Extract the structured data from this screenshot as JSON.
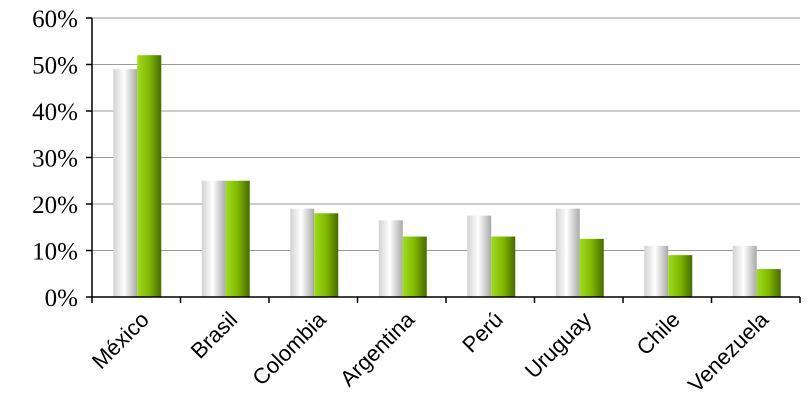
{
  "chart_data": {
    "type": "bar",
    "title": "",
    "xlabel": "",
    "ylabel": "",
    "categories": [
      "México",
      "Brasil",
      "Colombia",
      "Argentina",
      "Perú",
      "Uruguay",
      "Chile",
      "Venezuela"
    ],
    "series": [
      {
        "values": [
          49,
          25,
          19,
          16.5,
          17.5,
          19,
          11,
          11
        ],
        "color": "#d9d9d9"
      },
      {
        "values": [
          52,
          25,
          18,
          13,
          13,
          12.5,
          9,
          6
        ],
        "color": "#7fb800"
      }
    ],
    "ylim": [
      0,
      60
    ],
    "yticks": [
      "0%",
      "10%",
      "20%",
      "30%",
      "40%",
      "50%",
      "60%"
    ],
    "grid": true,
    "legend": "none"
  }
}
